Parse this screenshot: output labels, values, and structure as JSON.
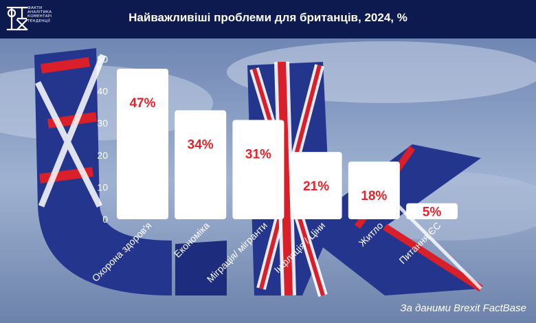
{
  "header": {
    "title": "Найважливіші проблеми для британців, 2024, %",
    "logo_lines": [
      "ФАКТИ",
      "АНАЛІТИКА",
      "КОМЕНТАРІ",
      "ТЕНДЕНЦІЇ"
    ],
    "logo_letters": "ФАКТ",
    "background": "#0d1a4f"
  },
  "chart_data": {
    "type": "bar",
    "title": "Найважливіші проблеми для британців, 2024, %",
    "categories": [
      "Охорона здоров'я",
      "Економіка",
      "Міграція/ мігранти",
      "Інфляція / Ціни",
      "Житло",
      "Питання ЄС"
    ],
    "values": [
      47,
      34,
      31,
      21,
      18,
      5
    ],
    "data_labels": [
      "47%",
      "34%",
      "31%",
      "21%",
      "18%",
      "5%"
    ],
    "yticks": [
      "0",
      "10",
      "20",
      "30",
      "40",
      "50"
    ],
    "ylim": [
      0,
      50
    ],
    "xlabel": "",
    "ylabel": "",
    "grid": false,
    "bar_color": "#ffffff",
    "label_color": "#e3222b"
  },
  "source": "За даними Brexit FactBase"
}
